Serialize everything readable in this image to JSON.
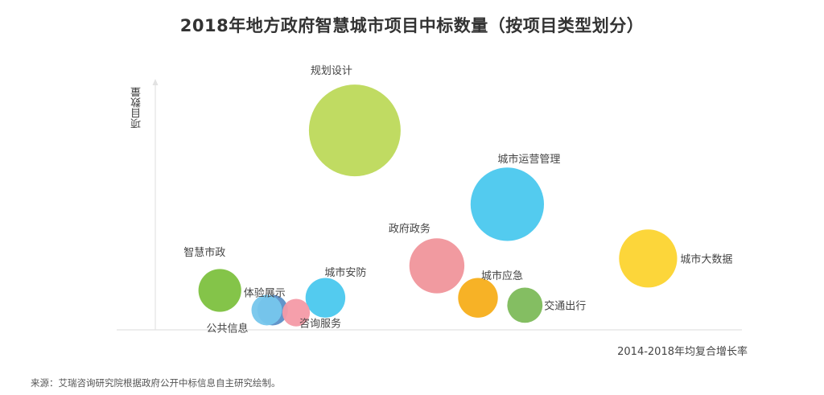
{
  "chart_data": {
    "type": "scatter",
    "title": "2018年地方政府智慧城市项目中标数量（按项目类型划分）",
    "xlabel": "2014-2018年均复合增长率",
    "ylabel": "项目数量",
    "points": [
      {
        "name": "规划设计",
        "x": 0.34,
        "y": 0.81,
        "r": 0.3,
        "color": "#BDD95A"
      },
      {
        "name": "城市运营管理",
        "x": 0.6,
        "y": 0.51,
        "r": 0.24,
        "color": "#4AC8EE"
      },
      {
        "name": "政府政务",
        "x": 0.48,
        "y": 0.26,
        "r": 0.18,
        "color": "#F0959B"
      },
      {
        "name": "城市大数据",
        "x": 0.84,
        "y": 0.29,
        "r": 0.19,
        "color": "#FCD42F"
      },
      {
        "name": "智慧市政",
        "x": 0.11,
        "y": 0.16,
        "r": 0.14,
        "color": "#7DC13F"
      },
      {
        "name": "城市安防",
        "x": 0.29,
        "y": 0.13,
        "r": 0.13,
        "color": "#4AC8EE"
      },
      {
        "name": "城市应急",
        "x": 0.55,
        "y": 0.13,
        "r": 0.13,
        "color": "#F7AE1A"
      },
      {
        "name": "交通出行",
        "x": 0.63,
        "y": 0.1,
        "r": 0.115,
        "color": "#7DBA5A"
      },
      {
        "name": "体验展示",
        "x": 0.2,
        "y": 0.08,
        "r": 0.1,
        "color": "#5B8FC7"
      },
      {
        "name": "公共信息",
        "x": 0.19,
        "y": 0.08,
        "r": 0.1,
        "color": "#76C6EC"
      },
      {
        "name": "咨询服务",
        "x": 0.24,
        "y": 0.07,
        "r": 0.09,
        "color": "#F49AA6"
      }
    ]
  },
  "source": "来源：艾瑞咨询研究院根据政府公开中标信息自主研究绘制。"
}
